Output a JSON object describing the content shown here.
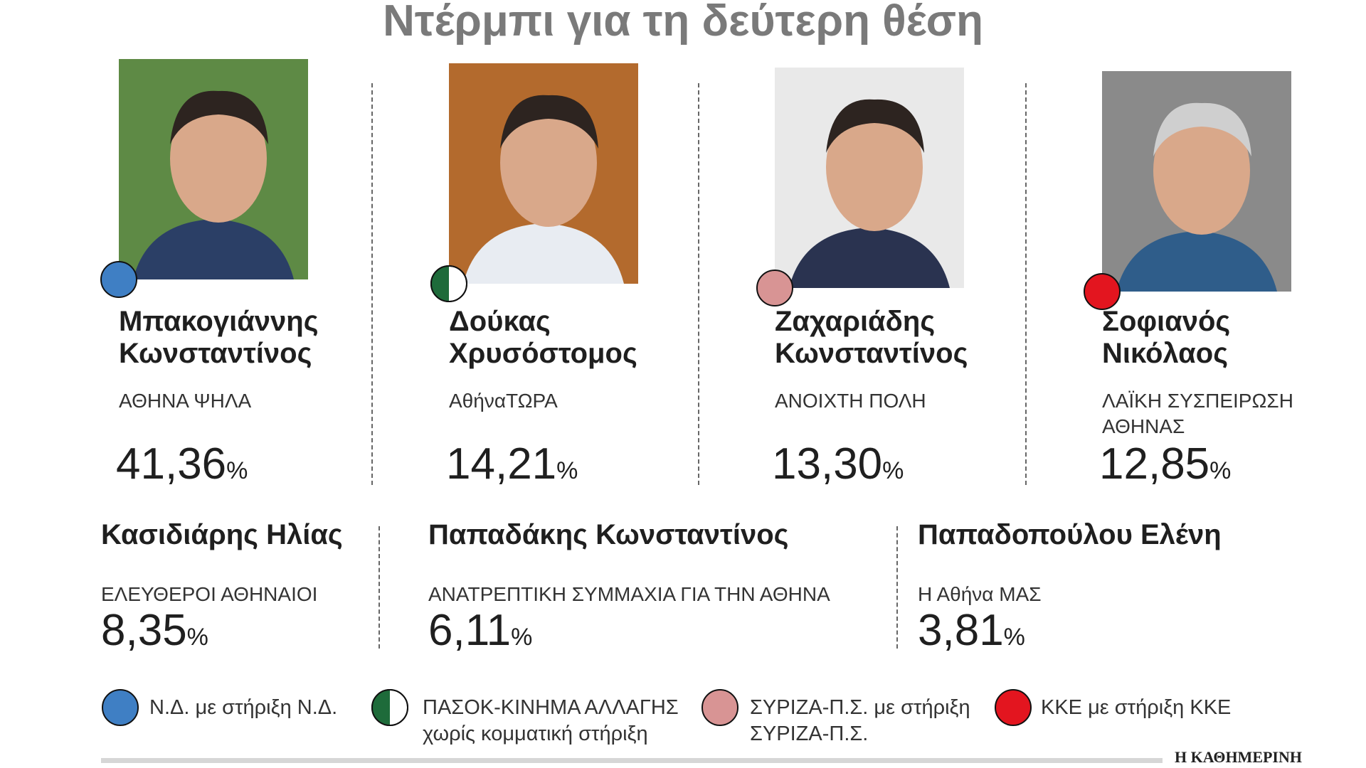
{
  "title": "Ντέρμπι για τη δεύτερη θέση",
  "top_candidates": [
    {
      "name_lines": [
        "Μπακογιάννης",
        "Κωνσταντίνος"
      ],
      "party_lines": [
        "ΑΘΗΝΑ ΨΗΛΑ"
      ],
      "share": "41,36",
      "sign": "%"
    },
    {
      "name_lines": [
        "Δούκας",
        "Χρυσόστομος"
      ],
      "party_lines": [
        "ΑθήναΤΩΡΑ"
      ],
      "share": "14,21",
      "sign": "%"
    },
    {
      "name_lines": [
        "Ζαχαριάδης",
        "Κωνσταντίνος"
      ],
      "party_lines": [
        "ΑΝΟΙΧΤΗ ΠΟΛΗ"
      ],
      "share": "13,30",
      "sign": "%"
    },
    {
      "name_lines": [
        "Σοφιανός",
        "Νικόλαος"
      ],
      "party_lines": [
        "ΛΑΪΚΗ ΣΥΣΠΕΙΡΩΣΗ",
        "ΑΘΗΝΑΣ"
      ],
      "share": "12,85",
      "sign": "%"
    }
  ],
  "other_candidates": [
    {
      "name": "Κασιδιάρης Ηλίας",
      "party": "ΕΛΕΥΘΕΡΟΙ ΑΘΗΝΑΙΟΙ",
      "share": "8,35",
      "sign": "%"
    },
    {
      "name": "Παπαδάκης Κωνσταντίνος",
      "party": "ΑΝΑΤΡΕΠΤΙΚΗ ΣΥΜΜΑΧΙΑ ΓΙΑ ΤΗΝ ΑΘΗΝΑ",
      "share": "6,11",
      "sign": "%"
    },
    {
      "name": "Παπαδοπούλου Ελένη",
      "party": "Η Αθήνα ΜΑΣ",
      "share": "3,81",
      "sign": "%"
    }
  ],
  "legend": [
    {
      "lines": [
        "Ν.Δ. με στήριξη Ν.Δ."
      ]
    },
    {
      "lines": [
        "ΠΑΣΟΚ-ΚΙΝΗΜΑ ΑΛΛΑΓΗΣ",
        "χωρίς κομματική στήριξη"
      ]
    },
    {
      "lines": [
        "ΣΥΡΙΖΑ-Π.Σ. με στήριξη",
        "ΣΥΡΙΖΑ-Π.Σ."
      ]
    },
    {
      "lines": [
        "ΚΚΕ με στήριξη ΚΚΕ"
      ]
    }
  ],
  "source": "Η ΚΑΘΗΜΕΡΙΝΗ"
}
